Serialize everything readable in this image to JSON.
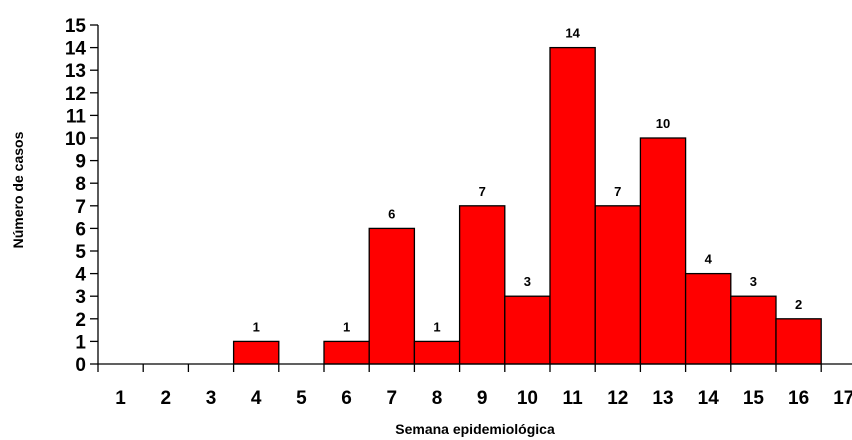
{
  "chart_data": {
    "type": "bar",
    "title": "",
    "xlabel": "Semana epidemiológica",
    "ylabel": "Número de casos",
    "categories": [
      "1",
      "2",
      "3",
      "4",
      "5",
      "6",
      "7",
      "8",
      "9",
      "10",
      "11",
      "12",
      "13",
      "14",
      "15",
      "16",
      "17"
    ],
    "values": [
      0,
      0,
      0,
      1,
      0,
      1,
      6,
      1,
      7,
      3,
      14,
      7,
      10,
      4,
      3,
      2,
      0
    ],
    "data_labels": [
      "",
      "",
      "",
      "1",
      "",
      "1",
      "6",
      "1",
      "7",
      "3",
      "14",
      "7",
      "10",
      "4",
      "3",
      "2",
      ""
    ],
    "y_ticks": [
      "0",
      "1",
      "2",
      "3",
      "4",
      "5",
      "6",
      "7",
      "8",
      "9",
      "10",
      "11",
      "12",
      "13",
      "14",
      "15"
    ],
    "ylim": [
      0,
      15
    ],
    "grid": false,
    "legend": "none",
    "bar_color": "#ff0000",
    "bar_edge_color": "#000000"
  }
}
